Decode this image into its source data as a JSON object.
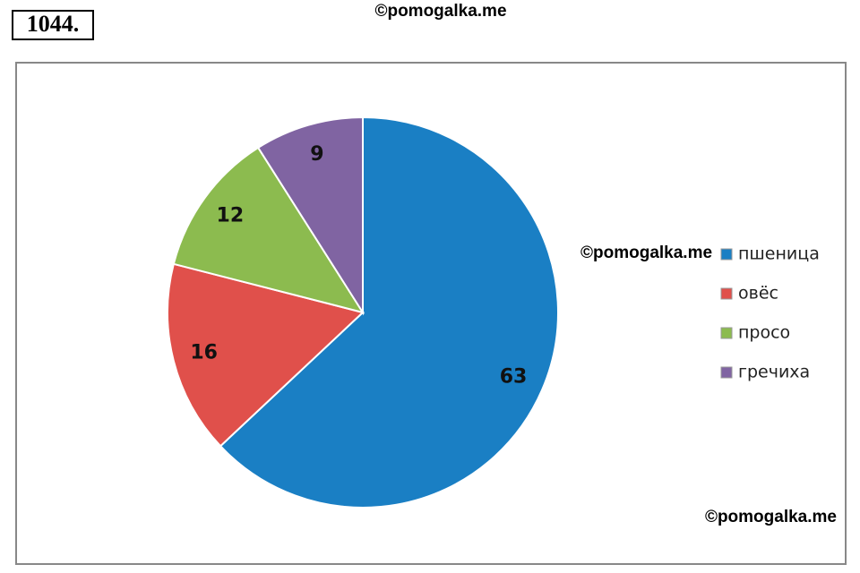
{
  "header": {
    "number": "1044."
  },
  "watermarks": [
    "©pomogalka.me",
    "©pomogalka.me",
    "©pomogalka.me"
  ],
  "chart_data": {
    "type": "pie",
    "categories": [
      "пшеница",
      "овёс",
      "просо",
      "гречиха"
    ],
    "values": [
      63,
      16,
      12,
      9
    ],
    "colors": [
      "#1a7fc4",
      "#e0504b",
      "#8cbb4f",
      "#8064a2"
    ],
    "legend": "right"
  }
}
